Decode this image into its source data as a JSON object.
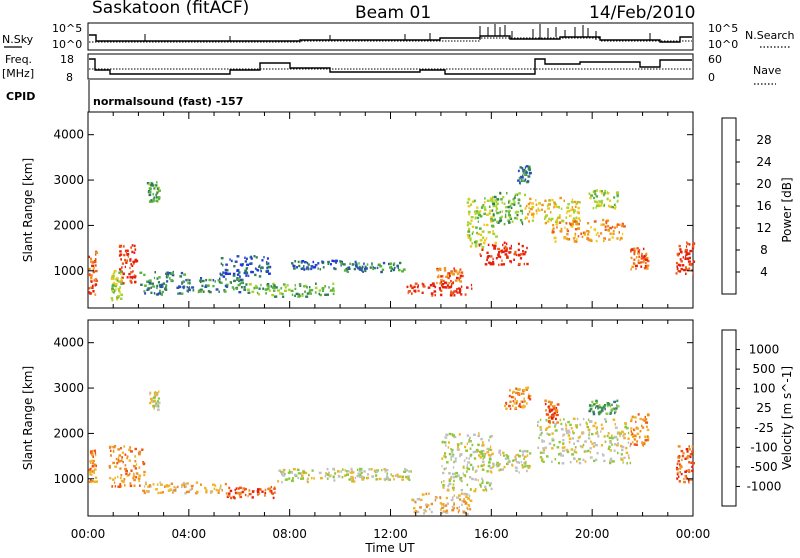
{
  "header": {
    "station": "Saskatoon (fitACF)",
    "beam": "Beam 01",
    "date": "14/Feb/2010"
  },
  "top_panels": {
    "nsky_label": "N.Sky",
    "nsearch_label": "N.Search",
    "nsky_ticks": [
      "10^5",
      "10^0"
    ],
    "nsearch_ticks": [
      "10^5",
      "10^0"
    ],
    "freq_label_1": "Freq.",
    "freq_label_2": "[MHz]",
    "freq_ticks": [
      "18",
      "8"
    ],
    "nave_label": "Nave",
    "nave_ticks": [
      "60",
      "0"
    ],
    "cpid_label": "CPID",
    "cpid_text": "normalsound (fast) -157"
  },
  "chart_data": [
    {
      "type": "heatmap",
      "name": "power",
      "ylabel": "Slant Range [km]",
      "xlabel": "",
      "x_ticks": [
        "00:00",
        "04:00",
        "08:00",
        "12:00",
        "16:00",
        "20:00",
        "00:00"
      ],
      "y_ticks": [
        "1000",
        "2000",
        "3000",
        "4000"
      ],
      "colorbar_label": "Power [dB]",
      "colorbar_ticks": [
        "28",
        "24",
        "20",
        "16",
        "12",
        "8",
        "4"
      ],
      "colors": [
        "#1e32e6",
        "#2850b4",
        "#2f7d54",
        "#58b23c",
        "#a4d42e",
        "#f0c81e",
        "#f0961e",
        "#f05a14",
        "#e61e0a"
      ],
      "xlim": [
        "00:00",
        "24:00"
      ],
      "ylim": [
        180,
        4500
      ],
      "regions": [
        {
          "t": [
            0.0,
            0.3
          ],
          "r": [
            450,
            1450
          ],
          "v": 7
        },
        {
          "t": [
            1.2,
            1.9
          ],
          "r": [
            700,
            1550
          ],
          "v": 8
        },
        {
          "t": [
            0.9,
            1.3
          ],
          "r": [
            300,
            1000
          ],
          "v": 4
        },
        {
          "t": [
            2.3,
            2.8
          ],
          "r": [
            2500,
            2950
          ],
          "v": 3
        },
        {
          "t": [
            2.0,
            3.8
          ],
          "r": [
            450,
            950
          ],
          "v": 2
        },
        {
          "t": [
            3.8,
            6.3
          ],
          "r": [
            500,
            820
          ],
          "v": 2
        },
        {
          "t": [
            5.2,
            7.2
          ],
          "r": [
            850,
            1300
          ],
          "v": 1
        },
        {
          "t": [
            6.3,
            9.8
          ],
          "r": [
            400,
            700
          ],
          "v": 3
        },
        {
          "t": [
            8.0,
            11.0
          ],
          "r": [
            1000,
            1200
          ],
          "v": 1
        },
        {
          "t": [
            10.0,
            12.5
          ],
          "r": [
            950,
            1150
          ],
          "v": 2
        },
        {
          "t": [
            12.5,
            15.2
          ],
          "r": [
            420,
            700
          ],
          "v": 8
        },
        {
          "t": [
            13.8,
            14.8
          ],
          "r": [
            700,
            1050
          ],
          "v": 7
        },
        {
          "t": [
            15.0,
            16.2
          ],
          "r": [
            1450,
            2600
          ],
          "v": 4
        },
        {
          "t": [
            15.5,
            17.4
          ],
          "r": [
            1100,
            1600
          ],
          "v": 8
        },
        {
          "t": [
            16.0,
            17.3
          ],
          "r": [
            2000,
            2700
          ],
          "v": 3
        },
        {
          "t": [
            17.3,
            19.5
          ],
          "r": [
            2000,
            2600
          ],
          "v": 5
        },
        {
          "t": [
            18.2,
            21.3
          ],
          "r": [
            1600,
            2100
          ],
          "v": 6
        },
        {
          "t": [
            19.8,
            21.0
          ],
          "r": [
            2350,
            2750
          ],
          "v": 4
        },
        {
          "t": [
            21.5,
            22.2
          ],
          "r": [
            1000,
            1500
          ],
          "v": 7
        },
        {
          "t": [
            23.3,
            24.0
          ],
          "r": [
            850,
            1600
          ],
          "v": 8
        },
        {
          "t": [
            17.0,
            17.5
          ],
          "r": [
            2900,
            3300
          ],
          "v": 2
        }
      ]
    },
    {
      "type": "heatmap",
      "name": "velocity",
      "ylabel": "Slant Range [km]",
      "xlabel": "Time UT",
      "x_ticks": [
        "00:00",
        "04:00",
        "08:00",
        "12:00",
        "16:00",
        "20:00",
        "00:00"
      ],
      "y_ticks": [
        "1000",
        "2000",
        "3000",
        "4000"
      ],
      "colorbar_label": "Velocity [m s^-1]",
      "colorbar_ticks": [
        "1000",
        "500",
        "100",
        "25",
        "-25",
        "-100",
        "-500",
        "-1000"
      ],
      "colors": [
        "#1e32c8",
        "#3c6e82",
        "#3c9646",
        "#8cc83c",
        "#c0c0c0",
        "#f0b428",
        "#f08c1e",
        "#f05014",
        "#e61e0a"
      ],
      "xlim": [
        "00:00",
        "24:00"
      ],
      "ylim": [
        180,
        4500
      ],
      "regions": [
        {
          "t": [
            0.0,
            0.3
          ],
          "r": [
            900,
            1600
          ],
          "v": 6
        },
        {
          "t": [
            0.8,
            2.2
          ],
          "r": [
            800,
            1700
          ],
          "v": 6
        },
        {
          "t": [
            2.1,
            5.5
          ],
          "r": [
            650,
            900
          ],
          "v": 5
        },
        {
          "t": [
            2.4,
            2.8
          ],
          "r": [
            2500,
            2900
          ],
          "v": 4
        },
        {
          "t": [
            5.5,
            7.5
          ],
          "r": [
            550,
            800
          ],
          "v": 7
        },
        {
          "t": [
            7.5,
            11.0
          ],
          "r": [
            900,
            1200
          ],
          "v": 4
        },
        {
          "t": [
            10.0,
            12.8
          ],
          "r": [
            950,
            1200
          ],
          "v": 4
        },
        {
          "t": [
            12.8,
            15.2
          ],
          "r": [
            200,
            650
          ],
          "v": 5
        },
        {
          "t": [
            14.0,
            16.0
          ],
          "r": [
            700,
            2000
          ],
          "v": 4
        },
        {
          "t": [
            15.5,
            17.5
          ],
          "r": [
            1100,
            1600
          ],
          "v": 4
        },
        {
          "t": [
            16.5,
            17.5
          ],
          "r": [
            2500,
            3000
          ],
          "v": 6
        },
        {
          "t": [
            17.8,
            21.5
          ],
          "r": [
            1300,
            2300
          ],
          "v": 4
        },
        {
          "t": [
            18.1,
            18.6
          ],
          "r": [
            2200,
            2700
          ],
          "v": 7
        },
        {
          "t": [
            19.8,
            21.0
          ],
          "r": [
            2400,
            2700
          ],
          "v": 2
        },
        {
          "t": [
            21.5,
            22.2
          ],
          "r": [
            1700,
            2400
          ],
          "v": 6
        },
        {
          "t": [
            23.3,
            24.0
          ],
          "r": [
            900,
            1700
          ],
          "v": 7
        }
      ]
    }
  ]
}
